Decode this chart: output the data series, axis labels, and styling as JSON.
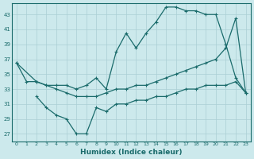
{
  "xlabel": "Humidex (Indice chaleur)",
  "ylabel": "",
  "bg_color": "#cce9ec",
  "grid_color": "#b8d8dc",
  "line_color": "#1a6b6b",
  "xlim": [
    -0.5,
    23.5
  ],
  "ylim": [
    26,
    44.5
  ],
  "yticks": [
    27,
    29,
    31,
    33,
    35,
    37,
    39,
    41,
    43
  ],
  "xticks": [
    0,
    1,
    2,
    3,
    4,
    5,
    6,
    7,
    8,
    9,
    10,
    11,
    12,
    13,
    14,
    15,
    16,
    17,
    18,
    19,
    20,
    21,
    22,
    23
  ],
  "line1_x": [
    0,
    1,
    2,
    3,
    4,
    5,
    6,
    7,
    8,
    9,
    10,
    11,
    12,
    13,
    14,
    15,
    16,
    17,
    18,
    19,
    20,
    21,
    22,
    23
  ],
  "line1_y": [
    36.5,
    34.0,
    34.0,
    33.5,
    33.5,
    33.5,
    33.0,
    33.5,
    34.5,
    33.0,
    38.0,
    40.5,
    38.5,
    40.5,
    42.0,
    44.0,
    44.0,
    43.5,
    43.5,
    43.0,
    43.0,
    39.0,
    34.5,
    32.5
  ],
  "line2_x": [
    0,
    2,
    3,
    4,
    5,
    6,
    7,
    8,
    9,
    10,
    11,
    12,
    13,
    14,
    15,
    16,
    17,
    18,
    19,
    20,
    21,
    22,
    23
  ],
  "line2_y": [
    36.5,
    34.0,
    33.5,
    33.0,
    32.5,
    32.0,
    32.0,
    32.0,
    32.5,
    33.0,
    33.0,
    33.5,
    33.5,
    34.0,
    34.5,
    35.0,
    35.5,
    36.0,
    36.5,
    37.0,
    38.5,
    42.5,
    32.5
  ],
  "line3_x": [
    2,
    3,
    4,
    5,
    6,
    7,
    8,
    9,
    10,
    11,
    12,
    13,
    14,
    15,
    16,
    17,
    18,
    19,
    20,
    21,
    22,
    23
  ],
  "line3_y": [
    32.0,
    30.5,
    29.5,
    29.0,
    27.0,
    27.0,
    30.5,
    30.0,
    31.0,
    31.0,
    31.5,
    31.5,
    32.0,
    32.0,
    32.5,
    33.0,
    33.0,
    33.5,
    33.5,
    33.5,
    34.0,
    32.5
  ]
}
